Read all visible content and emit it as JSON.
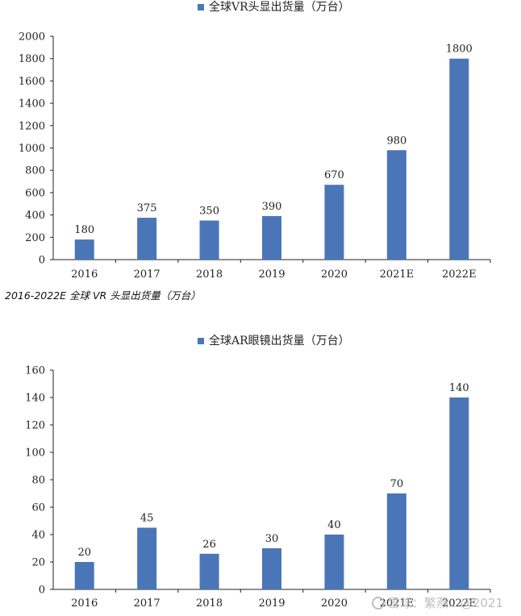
{
  "caption": "2016-2022E 全球 VR 头显出货量（万台）",
  "watermark": "雪球：繁燕…@2021",
  "colors": {
    "bar": "#4a76b8",
    "axis": "#222222",
    "text": "#222222"
  },
  "chart_data": [
    {
      "type": "bar",
      "legend": "全球VR头显出货量（万台）",
      "categories": [
        "2016",
        "2017",
        "2018",
        "2019",
        "2020",
        "2021E",
        "2022E"
      ],
      "values": [
        180,
        375,
        350,
        390,
        670,
        980,
        1800
      ],
      "ylim": [
        0,
        2000
      ],
      "yticks": [
        0,
        200,
        400,
        600,
        800,
        1000,
        1200,
        1400,
        1600,
        1800,
        2000
      ],
      "legend_position": "top-center",
      "grid": false
    },
    {
      "type": "bar",
      "legend": "全球AR眼镜出货量（万台）",
      "categories": [
        "2016",
        "2017",
        "2018",
        "2019",
        "2020",
        "2021E",
        "2022E"
      ],
      "values": [
        20,
        45,
        26,
        30,
        40,
        70,
        140
      ],
      "ylim": [
        0,
        160
      ],
      "yticks": [
        0,
        20,
        40,
        60,
        80,
        100,
        120,
        140,
        160
      ],
      "legend_position": "top-center",
      "grid": false
    }
  ]
}
